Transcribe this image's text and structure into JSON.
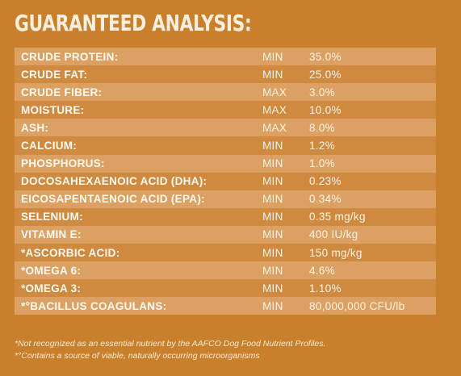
{
  "title": "GUARANTEED ANALYSIS:",
  "rows": [
    {
      "nutrient": "CRUDE PROTEIN:",
      "qualifier": "MIN",
      "value": "35.0%"
    },
    {
      "nutrient": "CRUDE FAT:",
      "qualifier": "MIN",
      "value": "25.0%"
    },
    {
      "nutrient": "CRUDE FIBER:",
      "qualifier": "MAX",
      "value": "3.0%"
    },
    {
      "nutrient": "MOISTURE:",
      "qualifier": "MAX",
      "value": "10.0%"
    },
    {
      "nutrient": "ASH:",
      "qualifier": "MAX",
      "value": "8.0%"
    },
    {
      "nutrient": "CALCIUM:",
      "qualifier": "MIN",
      "value": "1.2%"
    },
    {
      "nutrient": "PHOSPHORUS:",
      "qualifier": "MIN",
      "value": "1.0%"
    },
    {
      "nutrient": "DOCOSAHEXAENOIC ACID (DHA):",
      "qualifier": "MIN",
      "value": "0.23%"
    },
    {
      "nutrient": "EICOSAPENTAENOIC ACID (EPA):",
      "qualifier": "MIN",
      "value": "0.34%"
    },
    {
      "nutrient": "SELENIUM:",
      "qualifier": "MIN",
      "value": "0.35 mg/kg"
    },
    {
      "nutrient": "VITAMIN E:",
      "qualifier": "MIN",
      "value": "400 IU/kg"
    },
    {
      "nutrient": "*ASCORBIC ACID:",
      "qualifier": "MIN",
      "value": "150 mg/kg"
    },
    {
      "nutrient": "*OMEGA 6:",
      "qualifier": "MIN",
      "value": "4.6%"
    },
    {
      "nutrient": "*OMEGA 3:",
      "qualifier": "MIN",
      "value": "1.10%"
    },
    {
      "nutrient": "*°BACILLUS COAGULANS:",
      "qualifier": "MIN",
      "value": "80,000,000 CFU/lb"
    }
  ],
  "footnotes": [
    "*Not recognized as an essential nutrient by the AAFCO Dog Food Nutrient Profiles.",
    "*°Contains a source of viable, naturally occurring microorganisms"
  ],
  "colors": {
    "background": "#c9802c",
    "row_light": "#dca162",
    "row_dark": "#d08a40",
    "text": "#ffffff"
  }
}
